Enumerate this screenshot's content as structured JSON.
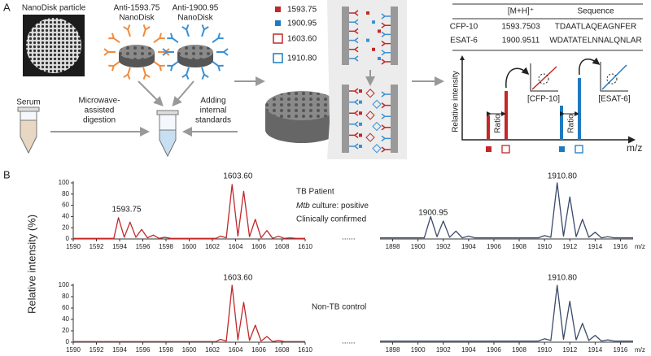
{
  "panel_a": {
    "label": "A",
    "particle": "NanoDisk particle",
    "anti_cfp": [
      "Anti-1593.75",
      "NanoDisk"
    ],
    "anti_esat": [
      "Anti-1900.95",
      "NanoDisk"
    ],
    "serum": "Serum",
    "digestion": [
      "Microwave-",
      "assisted",
      "digestion"
    ],
    "standards": [
      "Adding",
      "internal",
      "standards"
    ],
    "legend": [
      "1593.75",
      "1900.95",
      "1603.60",
      "1910.80"
    ],
    "table": {
      "header": [
        "[M+H]⁺",
        "Sequence"
      ],
      "rows": [
        [
          "CFP-10",
          "1593.7503",
          "TDAATLAQEAGNFER"
        ],
        [
          "ESAT-6",
          "1900.9511",
          "WDATATELNNALQNLAR"
        ]
      ]
    },
    "scheme": {
      "y_label": "Relative intensity",
      "ratio": "Ratio",
      "cfp": "[CFP-10]",
      "esat": "[ESAT-6]",
      "x_label": "m/z"
    }
  },
  "panel_b": {
    "label": "B",
    "y_label": "Relative intensity (%)",
    "dots": "......",
    "tb": [
      "TB Patient",
      "Mtb",
      " culture: positive",
      "Clinically confirmed"
    ],
    "non_tb": "Non-TB control"
  },
  "chart_data": [
    {
      "type": "line",
      "color": "#c0282a",
      "xlim": [
        1590,
        1610
      ],
      "ylim": [
        0,
        100
      ],
      "xticks": [
        1590,
        1592,
        1594,
        1596,
        1598,
        1600,
        1602,
        1604,
        1606,
        1608,
        1610
      ],
      "yticks": [
        0,
        20,
        40,
        60,
        80,
        100
      ],
      "annotations": [
        "1593.75",
        "1603.60"
      ],
      "x": [
        1590,
        1593.5,
        1593.9,
        1594.4,
        1594.9,
        1595.4,
        1595.9,
        1596.4,
        1596.9,
        1597.4,
        1597.9,
        1598.4,
        1602.3,
        1602.7,
        1603.2,
        1603.7,
        1604.2,
        1604.7,
        1605.2,
        1605.7,
        1606.2,
        1606.7,
        1607.2,
        1607.7,
        1608.2,
        1608.7,
        1609.2,
        1610
      ],
      "values": [
        1,
        1,
        38,
        3,
        30,
        3,
        17,
        2,
        7,
        1,
        3,
        1,
        1,
        5,
        2,
        97,
        5,
        85,
        4,
        35,
        2,
        15,
        1,
        5,
        1,
        2,
        1,
        1
      ]
    },
    {
      "type": "line",
      "color": "#3b4a6b",
      "xlim": [
        1897,
        1917
      ],
      "ylim": [
        0,
        100
      ],
      "xticks": [
        1898,
        1900,
        1902,
        1904,
        1906,
        1908,
        1910,
        1912,
        1914,
        1916
      ],
      "xlabel": "m/z",
      "annotations": [
        "1900.95",
        "1910.80"
      ],
      "x": [
        1897,
        1900.5,
        1901,
        1901.5,
        1902,
        1902.5,
        1903,
        1903.5,
        1904,
        1904.5,
        1909.5,
        1910,
        1910.5,
        1911,
        1911.5,
        1912,
        1912.5,
        1913,
        1913.5,
        1914,
        1914.5,
        1915,
        1915.5,
        1917
      ],
      "values": [
        2,
        2,
        40,
        4,
        32,
        3,
        14,
        2,
        5,
        2,
        2,
        6,
        3,
        100,
        5,
        75,
        4,
        35,
        3,
        12,
        2,
        4,
        2,
        2
      ]
    },
    {
      "type": "line",
      "color": "#c0282a",
      "xlim": [
        1590,
        1610
      ],
      "ylim": [
        0,
        100
      ],
      "xticks": [
        1590,
        1592,
        1594,
        1596,
        1598,
        1600,
        1602,
        1604,
        1606,
        1608,
        1610
      ],
      "yticks": [
        0,
        20,
        40,
        60,
        80,
        100
      ],
      "annotations": [
        "1603.60"
      ],
      "x": [
        1590,
        1602.3,
        1602.7,
        1603.2,
        1603.7,
        1604.2,
        1604.7,
        1605.2,
        1605.7,
        1606.2,
        1606.7,
        1607.2,
        1607.7,
        1608.2,
        1610
      ],
      "values": [
        1,
        1,
        5,
        2,
        100,
        4,
        70,
        3,
        30,
        2,
        10,
        1,
        3,
        1,
        1
      ]
    },
    {
      "type": "line",
      "color": "#3b4a6b",
      "xlim": [
        1897,
        1917
      ],
      "ylim": [
        0,
        100
      ],
      "xticks": [
        1898,
        1900,
        1902,
        1904,
        1906,
        1908,
        1910,
        1912,
        1914,
        1916
      ],
      "xlabel": "m/z",
      "annotations": [
        "1910.80"
      ],
      "x": [
        1897,
        1909.5,
        1910,
        1910.5,
        1911,
        1911.5,
        1912,
        1912.5,
        1913,
        1913.5,
        1914,
        1914.5,
        1915,
        1915.5,
        1917
      ],
      "values": [
        2,
        2,
        6,
        3,
        100,
        5,
        72,
        4,
        33,
        3,
        12,
        2,
        4,
        2,
        2
      ]
    }
  ]
}
